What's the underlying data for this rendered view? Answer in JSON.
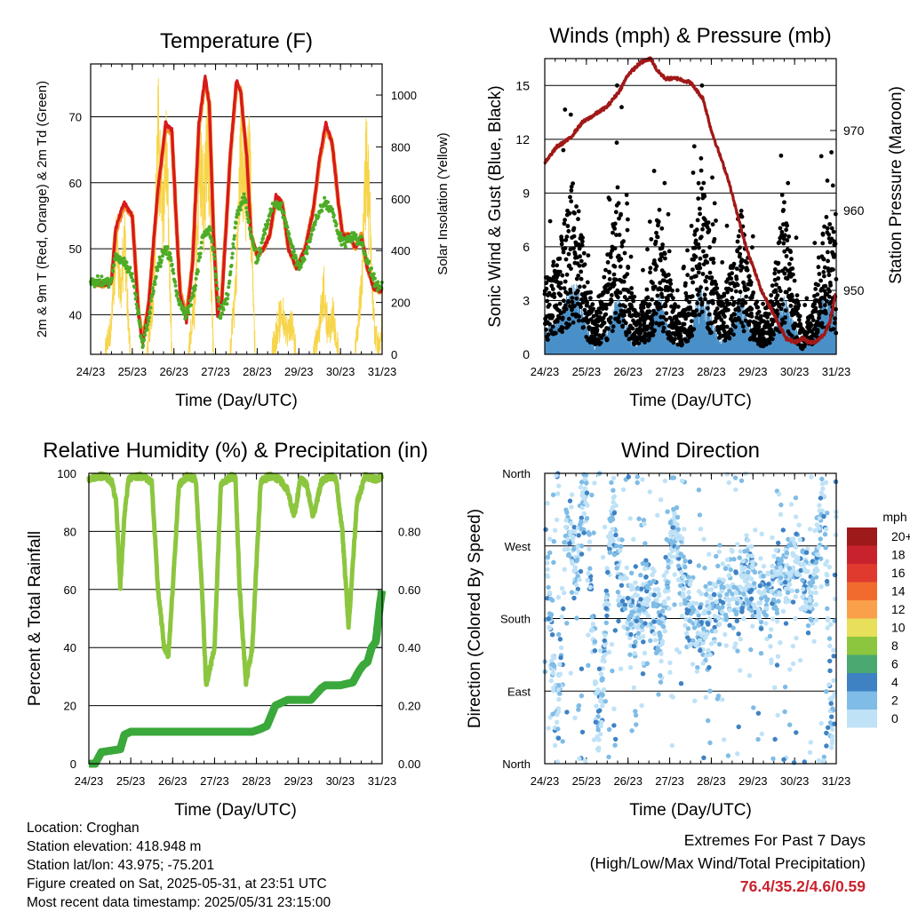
{
  "x_ticks": [
    "24/23",
    "25/23",
    "26/23",
    "27/23",
    "28/23",
    "29/23",
    "30/23",
    "31/23"
  ],
  "x_axis_label": "Time (Day/UTC)",
  "temperature": {
    "title": "Temperature (F)",
    "ylabel_left": "2m & 9m T (Red, Orange) & 2m Td (Green)",
    "ylabel_right": "Solar Insolation (Yellow)",
    "left_ticks": [
      40,
      50,
      60,
      70
    ],
    "right_ticks": [
      0,
      200,
      400,
      600,
      800,
      1000
    ],
    "colors": {
      "t2m": "#d7191c",
      "t9m": "#f28e2b",
      "td2m": "#4dac26",
      "solar": "#f7d54a"
    }
  },
  "winds": {
    "title": "Winds (mph) & Pressure (mb)",
    "ylabel_left": "Sonic Wind & Gust (Blue, Black)",
    "ylabel_right": "Station Pressure (Maroon)",
    "left_ticks": [
      0,
      3,
      6,
      9,
      12,
      15
    ],
    "right_ticks": [
      950,
      960,
      970
    ],
    "colors": {
      "wind": "#4a90c8",
      "gust": "#000000",
      "pressure": "#a11818"
    }
  },
  "humidity": {
    "title": "Relative Humidity (%) & Precipitation (in)",
    "ylabel_left": "Percent & Total Rainfall",
    "left_ticks": [
      0,
      20,
      40,
      60,
      80,
      100
    ],
    "right_ticks": [
      "0.00",
      "0.20",
      "0.40",
      "0.60",
      "0.80"
    ],
    "colors": {
      "rh": "#8cc63f",
      "precip": "#3aa83a"
    }
  },
  "direction": {
    "title": "Wind Direction",
    "ylabel_left": "Direction (Colored By Speed)",
    "dir_ticks": [
      "North",
      "East",
      "South",
      "West",
      "North"
    ],
    "legend_title": "mph",
    "legend": [
      {
        "label": "20+",
        "color": "#9e1a1a"
      },
      {
        "label": "18",
        "color": "#c8232c"
      },
      {
        "label": "16",
        "color": "#e03a2f"
      },
      {
        "label": "14",
        "color": "#f26b2e"
      },
      {
        "label": "12",
        "color": "#fba04a"
      },
      {
        "label": "10",
        "color": "#e8df5a"
      },
      {
        "label": "8",
        "color": "#8cc63f"
      },
      {
        "label": "6",
        "color": "#4aa870"
      },
      {
        "label": "4",
        "color": "#3f82c4"
      },
      {
        "label": "2",
        "color": "#7fbce6"
      },
      {
        "label": "0",
        "color": "#bfe2f7"
      }
    ]
  },
  "info": {
    "location": "Location: Croghan",
    "elevation": "Station elevation: 418.948 m",
    "latlon": "Station lat/lon: 43.975; -75.201",
    "created": "Figure created on Sat, 2025-05-31, at 23:51 UTC",
    "recent": "Most recent data timestamp: 2025/05/31 23:15:00"
  },
  "extremes": {
    "line1": "Extremes For Past 7 Days",
    "line2": "(High/Low/Max Wind/Total Precipitation)",
    "values": "76.4/35.2/4.6/0.59"
  },
  "chart_data": [
    {
      "type": "line",
      "title": "Temperature (F)",
      "xlabel": "Time (Day/UTC)",
      "ylabel": "2m & 9m T (Red, Orange) & 2m Td (Green)",
      "ylabel_right": "Solar Insolation (Yellow)",
      "xlim": [
        24,
        31
      ],
      "ylim": [
        34,
        78
      ],
      "ylim_right": [
        0,
        1120
      ],
      "grid": "horizontal",
      "series": [
        {
          "name": "2m T",
          "axis": "left",
          "x": [
            24.0,
            24.3,
            24.5,
            24.6,
            24.8,
            25.0,
            25.15,
            25.25,
            25.4,
            25.6,
            25.8,
            25.95,
            26.05,
            26.15,
            26.3,
            26.45,
            26.6,
            26.75,
            26.85,
            26.95,
            27.05,
            27.15,
            27.35,
            27.5,
            27.6,
            27.75,
            27.85,
            28.0,
            28.15,
            28.3,
            28.45,
            28.6,
            28.75,
            28.95,
            29.15,
            29.35,
            29.5,
            29.65,
            29.8,
            29.95,
            30.05,
            30.2,
            30.35,
            30.5,
            30.65,
            30.8,
            30.95,
            31.0
          ],
          "y": [
            45,
            44.6,
            45,
            53,
            57,
            55,
            40,
            35.5,
            42,
            58,
            69,
            68,
            55,
            43,
            39,
            48,
            69,
            76,
            72,
            52,
            40,
            42,
            64,
            75.5,
            74,
            64,
            52,
            49,
            50,
            52,
            58,
            57,
            50,
            47,
            50,
            56,
            64,
            69,
            66,
            57,
            52,
            52,
            50,
            52,
            47,
            44,
            43.5,
            44
          ]
        },
        {
          "name": "9m T",
          "axis": "left",
          "x": [
            24.0,
            24.3,
            24.5,
            24.6,
            24.8,
            25.0,
            25.15,
            25.25,
            25.4,
            25.6,
            25.8,
            25.95,
            26.05,
            26.15,
            26.3,
            26.45,
            26.6,
            26.75,
            26.85,
            26.95,
            27.05,
            27.15,
            27.35,
            27.5,
            27.6,
            27.75,
            27.85,
            28.0,
            28.15,
            28.3,
            28.45,
            28.6,
            28.75,
            28.95,
            29.15,
            29.35,
            29.5,
            29.65,
            29.8,
            29.95,
            30.05,
            30.2,
            30.35,
            30.5,
            30.65,
            30.8,
            30.95,
            31.0
          ],
          "y": [
            45,
            44.5,
            45,
            52.5,
            56.5,
            55,
            40.5,
            36,
            42,
            57.5,
            68.5,
            67.5,
            55,
            43.5,
            39.5,
            48,
            68.5,
            75.5,
            72,
            52.5,
            40.5,
            42.5,
            63.5,
            75,
            74,
            64,
            52,
            49,
            50,
            52,
            57.5,
            57,
            50,
            47,
            50,
            56,
            63.5,
            68.5,
            66,
            57,
            52,
            52,
            50,
            52,
            47,
            44,
            43.5,
            44
          ]
        },
        {
          "name": "2m Td",
          "axis": "left",
          "x": [
            24.0,
            24.3,
            24.5,
            24.6,
            24.8,
            25.0,
            25.15,
            25.25,
            25.4,
            25.6,
            25.8,
            25.95,
            26.1,
            26.3,
            26.5,
            26.7,
            26.85,
            26.95,
            27.1,
            27.3,
            27.5,
            27.7,
            27.85,
            28.0,
            28.2,
            28.4,
            28.6,
            28.8,
            29.0,
            29.2,
            29.4,
            29.6,
            29.8,
            29.95,
            30.1,
            30.3,
            30.5,
            30.7,
            30.9,
            31.0
          ],
          "y": [
            45,
            44.8,
            45,
            49,
            48,
            46,
            40,
            35.3,
            40,
            47,
            50,
            48,
            42,
            40,
            44,
            52,
            53,
            50,
            40,
            43,
            55,
            58,
            52,
            48,
            53,
            57,
            56,
            51,
            47,
            50,
            54,
            57,
            56,
            52,
            51,
            52,
            51,
            47,
            44,
            44
          ]
        },
        {
          "name": "Solar Insolation",
          "axis": "right",
          "x": [
            24.0,
            24.35,
            24.5,
            24.62,
            24.72,
            24.82,
            24.95,
            25.35,
            25.5,
            25.62,
            25.72,
            25.82,
            25.95,
            26.35,
            26.5,
            26.62,
            26.72,
            26.82,
            26.95,
            27.35,
            27.5,
            27.62,
            27.72,
            27.82,
            27.95,
            28.35,
            28.5,
            28.62,
            28.72,
            28.82,
            28.95,
            29.35,
            29.5,
            29.6,
            29.72,
            29.82,
            29.95,
            30.35,
            30.5,
            30.62,
            30.72,
            30.82,
            30.95,
            31.0
          ],
          "y": [
            0,
            0,
            150,
            600,
            300,
            550,
            0,
            0,
            300,
            1080,
            700,
            1000,
            0,
            0,
            250,
            1050,
            800,
            1060,
            0,
            0,
            400,
            1090,
            750,
            950,
            0,
            0,
            150,
            200,
            100,
            150,
            0,
            0,
            150,
            300,
            100,
            200,
            0,
            0,
            300,
            1000,
            600,
            100,
            0,
            150
          ]
        }
      ]
    },
    {
      "type": "scatter",
      "title": "Winds (mph) & Pressure (mb)",
      "xlabel": "Time (Day/UTC)",
      "ylabel": "Sonic Wind & Gust (Blue, Black)",
      "ylabel_right": "Station Pressure (Maroon)",
      "xlim": [
        24,
        31
      ],
      "ylim": [
        0,
        16.5
      ],
      "ylim_right": [
        942,
        979
      ],
      "grid": "horizontal",
      "series": [
        {
          "name": "Gust",
          "axis": "left",
          "x": [
            24.0,
            24.3,
            24.55,
            24.75,
            24.95,
            25.2,
            25.5,
            25.75,
            25.95,
            26.2,
            26.5,
            26.75,
            26.95,
            27.2,
            27.5,
            27.75,
            27.95,
            28.2,
            28.45,
            28.7,
            28.95,
            29.2,
            29.5,
            29.75,
            29.95,
            30.2,
            30.45,
            30.7,
            30.95,
            31.0
          ],
          "y": [
            3,
            4,
            6,
            7.5,
            4,
            1.5,
            3,
            7,
            4,
            1.5,
            3,
            6,
            3.5,
            1.5,
            3,
            8,
            5,
            2,
            3.5,
            6,
            3,
            1.5,
            3,
            6.5,
            3.5,
            1,
            2,
            6,
            5,
            4
          ]
        },
        {
          "name": "Sonic Wind",
          "axis": "left",
          "x": [
            24.0,
            24.3,
            24.55,
            24.75,
            24.95,
            25.2,
            25.5,
            25.75,
            25.95,
            26.2,
            26.5,
            26.75,
            26.95,
            27.2,
            27.5,
            27.75,
            27.95,
            28.2,
            28.45,
            28.7,
            28.95,
            29.2,
            29.5,
            29.75,
            29.95,
            30.2,
            30.45,
            30.7,
            30.95,
            31.0
          ],
          "y": [
            1,
            1.5,
            2.5,
            3,
            1.5,
            0.3,
            1,
            2.5,
            1.5,
            0.3,
            1,
            2.5,
            1.2,
            0.3,
            1,
            3,
            2,
            0.5,
            1,
            2.5,
            1.2,
            0.3,
            1,
            2.5,
            1.5,
            0.3,
            0.8,
            2.5,
            2,
            1.5
          ]
        },
        {
          "name": "Station Pressure",
          "axis": "right",
          "x": [
            24.0,
            24.3,
            24.6,
            24.9,
            25.2,
            25.5,
            25.8,
            26.0,
            26.3,
            26.55,
            26.7,
            26.9,
            27.2,
            27.5,
            27.8,
            28.0,
            28.2,
            28.4,
            28.6,
            28.8,
            29.0,
            29.2,
            29.4,
            29.6,
            29.8,
            30.0,
            30.2,
            30.35,
            30.5,
            30.7,
            30.85,
            31.0
          ],
          "y": [
            966,
            968,
            969,
            971,
            972,
            973,
            975,
            977,
            978.5,
            979,
            977.5,
            976.5,
            976.5,
            976,
            974,
            970,
            967,
            964,
            960,
            956,
            953,
            950,
            948,
            946,
            944,
            943.5,
            944,
            943.5,
            943.5,
            944.5,
            946,
            950
          ]
        }
      ]
    },
    {
      "type": "line",
      "title": "Relative Humidity (%) & Precipitation (in)",
      "xlabel": "Time (Day/UTC)",
      "ylabel": "Percent & Total Rainfall",
      "xlim": [
        24,
        31
      ],
      "ylim": [
        0,
        100
      ],
      "ylim_right": [
        0,
        1.0
      ],
      "grid": "horizontal",
      "series": [
        {
          "name": "Relative Humidity",
          "axis": "left",
          "x": [
            24.0,
            24.2,
            24.4,
            24.55,
            24.65,
            24.75,
            24.85,
            24.95,
            25.05,
            25.3,
            25.5,
            25.65,
            25.8,
            25.9,
            26.0,
            26.15,
            26.35,
            26.55,
            26.7,
            26.8,
            27.0,
            27.15,
            27.4,
            27.5,
            27.6,
            27.75,
            27.9,
            28.1,
            28.3,
            28.55,
            28.75,
            28.9,
            29.05,
            29.2,
            29.35,
            29.55,
            29.75,
            29.9,
            30.05,
            30.2,
            30.4,
            30.6,
            30.85,
            31.0
          ],
          "y": [
            98,
            99,
            99,
            97,
            90,
            61,
            86,
            98,
            99,
            99,
            97,
            60,
            40,
            37,
            60,
            96,
            99,
            98,
            60,
            27,
            40,
            96,
            99,
            98,
            60,
            28,
            40,
            97,
            99,
            98,
            94,
            85,
            98,
            96,
            85,
            97,
            99,
            98,
            80,
            47,
            90,
            99,
            98,
            99
          ]
        },
        {
          "name": "Total Precipitation",
          "axis": "right",
          "x": [
            24.0,
            24.15,
            24.3,
            24.75,
            24.85,
            25.0,
            26.0,
            27.0,
            27.9,
            28.1,
            28.25,
            28.45,
            28.6,
            28.75,
            29.0,
            29.3,
            29.55,
            29.65,
            29.8,
            30.0,
            30.3,
            30.45,
            30.55,
            30.65,
            30.75,
            30.85,
            30.95,
            31.0
          ],
          "y": [
            0,
            0,
            0.04,
            0.05,
            0.1,
            0.11,
            0.11,
            0.11,
            0.11,
            0.12,
            0.13,
            0.2,
            0.21,
            0.22,
            0.22,
            0.22,
            0.26,
            0.27,
            0.27,
            0.27,
            0.28,
            0.32,
            0.34,
            0.35,
            0.4,
            0.42,
            0.55,
            0.6
          ]
        }
      ]
    },
    {
      "type": "scatter",
      "title": "Wind Direction",
      "xlabel": "Time (Day/UTC)",
      "ylabel": "Direction (Colored By Speed)",
      "xlim": [
        24,
        31
      ],
      "ylim": [
        0,
        360
      ],
      "y_tick_labels": [
        "North",
        "East",
        "South",
        "West",
        "North"
      ],
      "legend_title": "mph",
      "legend_placement": "right",
      "grid": "horizontal",
      "series": [
        {
          "name": "Wind Direction",
          "x": [
            24.0,
            24.3,
            24.5,
            24.75,
            25.0,
            25.3,
            25.6,
            25.9,
            26.2,
            26.5,
            26.8,
            27.1,
            27.4,
            27.7,
            28.0,
            28.3,
            28.6,
            28.9,
            29.2,
            29.5,
            29.8,
            30.1,
            30.4,
            30.7,
            30.9,
            31.0
          ],
          "y": [
            320,
            20,
            300,
            250,
            340,
            20,
            320,
            200,
            180,
            220,
            160,
            300,
            200,
            160,
            180,
            220,
            200,
            240,
            210,
            220,
            230,
            250,
            200,
            350,
            20,
            340
          ]
        }
      ]
    }
  ]
}
